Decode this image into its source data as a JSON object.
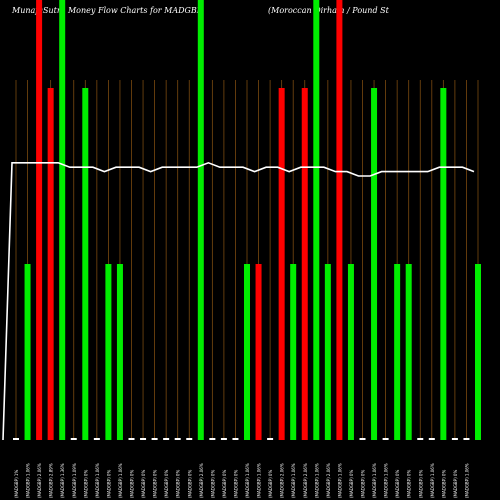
{
  "title_left": "MunafaSutra  Money Flow  Charts for MADGBP",
  "title_right": "(Moroccan Dirham / Pound St",
  "chart_data": {
    "type": "bar",
    "categories": [
      "(MADGBP) 1%",
      "(MADGBP) 1.06%",
      "(MADGBP) 2.06%",
      "(MADGBP) 2.89%",
      "(MADGBP) 1.36%",
      "(MADGBP) 1.09%",
      "(MADGBP) 0%",
      "(MADGBP) 1.06%",
      "(MADGBP) 0%",
      "(MADGBP) 1.06%",
      "(MADGBP) 0%",
      "(MADGBP) 0%",
      "(MADGBP) 0%",
      "(MADGBP) 0%",
      "(MADGBP) 0%",
      "(MADGBP) 0%",
      "(MADGBP) 2.06%",
      "(MADGBP) 0%",
      "(MADGBP) 0%",
      "(MADGBP) 0%",
      "(MADGBP) 1.06%",
      "(MADGBP) 1.06%",
      "(MADGBP) 0%",
      "(MADGBP) 2.06%",
      "(MADGBP) 1.06%",
      "(MADGBP) 2.06%",
      "(MADGBP) 1.06%",
      "(MADGBP) 2.06%",
      "(MADGBP) 1.06%",
      "(MADGBP) 0%",
      "(MADGBP) 0%",
      "(MADGBP) 1.06%",
      "(MADGBP) 1.06%",
      "(MADGBP) 0%",
      "(MADGBP) 0%",
      "(MADGBP) 0%",
      "(MADGBP) 1.06%",
      "(MADGBP) 0%",
      "(MADGBP) 0%",
      "(MADGBP) 1.06%"
    ],
    "bars": [
      {
        "color": "green",
        "value": 0
      },
      {
        "color": "green",
        "value": 40
      },
      {
        "color": "red",
        "value": 100
      },
      {
        "color": "red",
        "value": 80
      },
      {
        "color": "green",
        "value": 100
      },
      {
        "color": "green",
        "value": 0
      },
      {
        "color": "green",
        "value": 80
      },
      {
        "color": "green",
        "value": 0
      },
      {
        "color": "green",
        "value": 40
      },
      {
        "color": "green",
        "value": 40
      },
      {
        "color": "green",
        "value": 0
      },
      {
        "color": "green",
        "value": 0
      },
      {
        "color": "green",
        "value": 0
      },
      {
        "color": "green",
        "value": 0
      },
      {
        "color": "green",
        "value": 0
      },
      {
        "color": "green",
        "value": 0
      },
      {
        "color": "green",
        "value": 100
      },
      {
        "color": "green",
        "value": 0
      },
      {
        "color": "green",
        "value": 0
      },
      {
        "color": "green",
        "value": 0
      },
      {
        "color": "green",
        "value": 40
      },
      {
        "color": "red",
        "value": 40
      },
      {
        "color": "green",
        "value": 0
      },
      {
        "color": "red",
        "value": 80
      },
      {
        "color": "green",
        "value": 40
      },
      {
        "color": "red",
        "value": 80
      },
      {
        "color": "green",
        "value": 100
      },
      {
        "color": "green",
        "value": 40
      },
      {
        "color": "red",
        "value": 100
      },
      {
        "color": "green",
        "value": 40
      },
      {
        "color": "green",
        "value": 0
      },
      {
        "color": "green",
        "value": 80
      },
      {
        "color": "green",
        "value": 0
      },
      {
        "color": "green",
        "value": 40
      },
      {
        "color": "green",
        "value": 40
      },
      {
        "color": "green",
        "value": 0
      },
      {
        "color": "green",
        "value": 0
      },
      {
        "color": "green",
        "value": 80
      },
      {
        "color": "green",
        "value": 0
      },
      {
        "color": "green",
        "value": 0
      },
      {
        "color": "green",
        "value": 40
      }
    ],
    "line": [
      0,
      63,
      63,
      63,
      63,
      62,
      62,
      62,
      61,
      62,
      62,
      62,
      61,
      62,
      62,
      62,
      62,
      63,
      62,
      62,
      62,
      61,
      62,
      62,
      61,
      62,
      62,
      62,
      61,
      61,
      60,
      60,
      61,
      61,
      61,
      61,
      61,
      62,
      62,
      62,
      61
    ],
    "ylim": [
      0,
      100
    ],
    "colors": {
      "green": "#00ee00",
      "red": "#ff0000",
      "line": "#ffffff",
      "grid": "#7a4a10",
      "stub": "#ffffff"
    }
  }
}
